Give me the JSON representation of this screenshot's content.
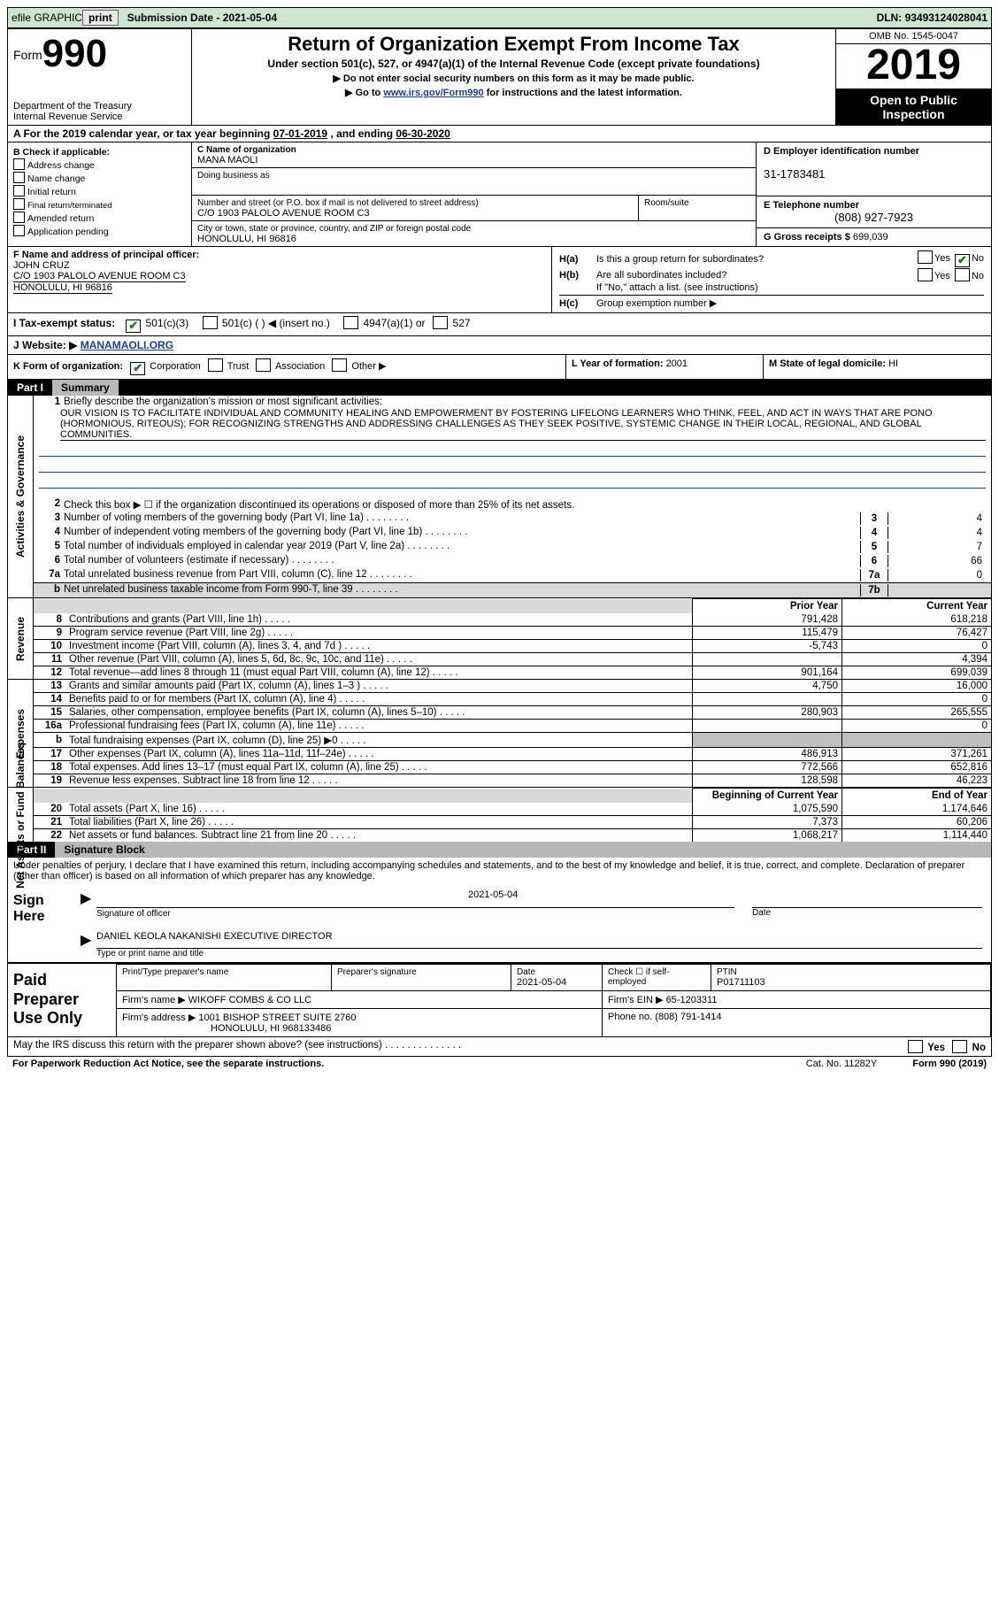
{
  "topbar": {
    "efile_label": "efile GRAPHIC",
    "print_btn": "print",
    "sub_date_label": "Submission Date - ",
    "sub_date": "2021-05-04",
    "dln_label": "DLN: ",
    "dln": "93493124028041"
  },
  "header": {
    "form_prefix": "Form",
    "form_number": "990",
    "dept": "Department of the Treasury\nInternal Revenue Service",
    "title": "Return of Organization Exempt From Income Tax",
    "sub1": "Under section 501(c), 527, or 4947(a)(1) of the Internal Revenue Code (except private foundations)",
    "sub2": "▶ Do not enter social security numbers on this form as it may be made public.",
    "sub3_pre": "▶ Go to ",
    "sub3_link": "www.irs.gov/Form990",
    "sub3_post": " for instructions and the latest information.",
    "omb": "OMB No. 1545-0047",
    "year": "2019",
    "otp": "Open to Public Inspection"
  },
  "row_a": {
    "pre": "A For the 2019 calendar year, or tax year beginning ",
    "begin": "07-01-2019",
    "mid": "   , and ending ",
    "end": "06-30-2020"
  },
  "col_b": {
    "label": "B Check if applicable:",
    "items": [
      "Address change",
      "Name change",
      "Initial return",
      "Final return/terminated",
      "Amended return",
      "Application pending"
    ]
  },
  "col_c": {
    "c_label": "C Name of organization",
    "org": "MANA MAOLI",
    "dba_label": "Doing business as",
    "dba": "",
    "addr_label": "Number and street (or P.O. box if mail is not delivered to street address)",
    "room_label": "Room/suite",
    "addr": "C/O 1903 PALOLO AVENUE ROOM C3",
    "city_label": "City or town, state or province, country, and ZIP or foreign postal code",
    "city": "HONOLULU, HI  96816"
  },
  "col_d": {
    "d_label": "D Employer identification number",
    "ein": "31-1783481",
    "e_label": "E Telephone number",
    "phone": "(808) 927-7923",
    "g_label": "G Gross receipts $ ",
    "gross": "699,039"
  },
  "row_f": {
    "label": "F Name and address of principal officer:",
    "name": "JOHN CRUZ",
    "addr1": "C/O 1903 PALOLO AVENUE ROOM C3",
    "addr2": "HONOLULU, HI  96816"
  },
  "row_h": {
    "ha_label": "H(a)",
    "ha_text": "Is this a group return for subordinates?",
    "ha_yes": "Yes",
    "ha_no": "No",
    "hb_label": "H(b)",
    "hb_text": "Are all subordinates included?",
    "hb_note": "If \"No,\" attach a list. (see instructions)",
    "hc_label": "H(c)",
    "hc_text": "Group exemption number ▶"
  },
  "row_i": {
    "label": "I Tax-exempt status:",
    "o1": "501(c)(3)",
    "o2": "501(c) (  ) ◀ (insert no.)",
    "o3": "4947(a)(1) or",
    "o4": "527"
  },
  "row_j": {
    "label": "J   Website: ▶",
    "url": "MANAMAOLI.ORG"
  },
  "row_k": {
    "label": "K Form of organization:",
    "o1": "Corporation",
    "o2": "Trust",
    "o3": "Association",
    "o4": "Other ▶"
  },
  "row_l": {
    "label": "L Year of formation: ",
    "val": "2001"
  },
  "row_m": {
    "label": "M State of legal domicile: ",
    "val": "HI"
  },
  "part1": {
    "num": "Part I",
    "title": "Summary"
  },
  "sec_labels": {
    "ag": "Activities & Governance",
    "rev": "Revenue",
    "exp": "Expenses",
    "net": "Net Assets or Fund Balances"
  },
  "q1": {
    "n": "1",
    "t": "Briefly describe the organization's mission or most significant activities:",
    "mission": "OUR VISION IS TO FACILITATE INDIVIDUAL AND COMMUNITY HEALING AND EMPOWERMENT BY FOSTERING LIFELONG LEARNERS WHO THINK, FEEL, AND ACT IN WAYS THAT ARE PONO (HORMONIOUS, RITEOUS); FOR RECOGNIZING STRENGTHS AND ADDRESSING CHALLENGES AS THEY SEEK POSITIVE, SYSTEMIC CHANGE IN THEIR LOCAL, REGIONAL, AND GLOBAL COMMUNITIES."
  },
  "lines_ag": [
    {
      "n": "2",
      "t": "Check this box ▶ ☐  if the organization discontinued its operations or disposed of more than 25% of its net assets."
    },
    {
      "n": "3",
      "t": "Number of voting members of the governing body (Part VI, line 1a)",
      "an": "3",
      "av": "4"
    },
    {
      "n": "4",
      "t": "Number of independent voting members of the governing body (Part VI, line 1b)",
      "an": "4",
      "av": "4"
    },
    {
      "n": "5",
      "t": "Total number of individuals employed in calendar year 2019 (Part V, line 2a)",
      "an": "5",
      "av": "7"
    },
    {
      "n": "6",
      "t": "Total number of volunteers (estimate if necessary)",
      "an": "6",
      "av": "66"
    },
    {
      "n": "7a",
      "t": "Total unrelated business revenue from Part VIII, column (C), line 12",
      "an": "7a",
      "av": "0"
    },
    {
      "n": "b",
      "t": "Net unrelated business taxable income from Form 990-T, line 39",
      "an": "7b",
      "av": ""
    }
  ],
  "fin_hdr": {
    "py": "Prior Year",
    "cy": "Current Year",
    "boy": "Beginning of Current Year",
    "eoy": "End of Year"
  },
  "rev_rows": [
    {
      "n": "8",
      "t": "Contributions and grants (Part VIII, line 1h)",
      "py": "791,428",
      "cy": "618,218"
    },
    {
      "n": "9",
      "t": "Program service revenue (Part VIII, line 2g)",
      "py": "115,479",
      "cy": "76,427"
    },
    {
      "n": "10",
      "t": "Investment income (Part VIII, column (A), lines 3, 4, and 7d )",
      "py": "-5,743",
      "cy": "0"
    },
    {
      "n": "11",
      "t": "Other revenue (Part VIII, column (A), lines 5, 6d, 8c, 9c, 10c, and 11e)",
      "py": "",
      "cy": "4,394"
    },
    {
      "n": "12",
      "t": "Total revenue—add lines 8 through 11 (must equal Part VIII, column (A), line 12)",
      "py": "901,164",
      "cy": "699,039"
    }
  ],
  "exp_rows": [
    {
      "n": "13",
      "t": "Grants and similar amounts paid (Part IX, column (A), lines 1–3 )",
      "py": "4,750",
      "cy": "16,000"
    },
    {
      "n": "14",
      "t": "Benefits paid to or for members (Part IX, column (A), line 4)",
      "py": "",
      "cy": "0"
    },
    {
      "n": "15",
      "t": "Salaries, other compensation, employee benefits (Part IX, column (A), lines 5–10)",
      "py": "280,903",
      "cy": "265,555"
    },
    {
      "n": "16a",
      "t": "Professional fundraising fees (Part IX, column (A), line 11e)",
      "py": "",
      "cy": "0"
    },
    {
      "n": "b",
      "t": "Total fundraising expenses (Part IX, column (D), line 25) ▶0",
      "py": "GREY",
      "cy": "GREY"
    },
    {
      "n": "17",
      "t": "Other expenses (Part IX, column (A), lines 11a–11d, 11f–24e)",
      "py": "486,913",
      "cy": "371,261"
    },
    {
      "n": "18",
      "t": "Total expenses. Add lines 13–17 (must equal Part IX, column (A), line 25)",
      "py": "772,566",
      "cy": "652,816"
    },
    {
      "n": "19",
      "t": "Revenue less expenses. Subtract line 18 from line 12",
      "py": "128,598",
      "cy": "46,223"
    }
  ],
  "net_rows": [
    {
      "n": "20",
      "t": "Total assets (Part X, line 16)",
      "py": "1,075,590",
      "cy": "1,174,646"
    },
    {
      "n": "21",
      "t": "Total liabilities (Part X, line 26)",
      "py": "7,373",
      "cy": "60,206"
    },
    {
      "n": "22",
      "t": "Net assets or fund balances. Subtract line 21 from line 20",
      "py": "1,068,217",
      "cy": "1,114,440"
    }
  ],
  "part2": {
    "num": "Part II",
    "title": "Signature Block"
  },
  "sig": {
    "decl": "Under penalties of perjury, I declare that I have examined this return, including accompanying schedules and statements, and to the best of my knowledge and belief, it is true, correct, and complete. Declaration of preparer (other than officer) is based on all information of which preparer has any knowledge.",
    "sign_here": "Sign Here",
    "sig_officer": "Signature of officer",
    "sig_date": "2021-05-04",
    "date_lbl": "Date",
    "name_title": "DANIEL KEOLA NAKANISHI  EXECUTIVE DIRECTOR",
    "name_lbl": "Type or print name and title"
  },
  "paid": {
    "title": "Paid Preparer Use Only",
    "h1": "Print/Type preparer's name",
    "h2": "Preparer's signature",
    "h3_lbl": "Date",
    "h3": "2021-05-04",
    "h4_lbl": "Check ☐ if self-employed",
    "h5_lbl": "PTIN",
    "h5": "P01711103",
    "firm_name_lbl": "Firm's name    ▶",
    "firm_name": "WIKOFF COMBS & CO LLC",
    "firm_ein_lbl": "Firm's EIN ▶",
    "firm_ein": "65-1203311",
    "firm_addr_lbl": "Firm's address ▶",
    "firm_addr1": "1001 BISHOP STREET SUITE 2760",
    "firm_addr2": "HONOLULU, HI  968133486",
    "phone_lbl": "Phone no. ",
    "phone": "(808) 791-1414"
  },
  "footer": {
    "q": "May the IRS discuss this return with the preparer shown above? (see instructions)",
    "yes": "Yes",
    "no": "No",
    "pra": "For Paperwork Reduction Act Notice, see the separate instructions.",
    "cat": "Cat. No. 11282Y",
    "form": "Form 990 (2019)"
  }
}
